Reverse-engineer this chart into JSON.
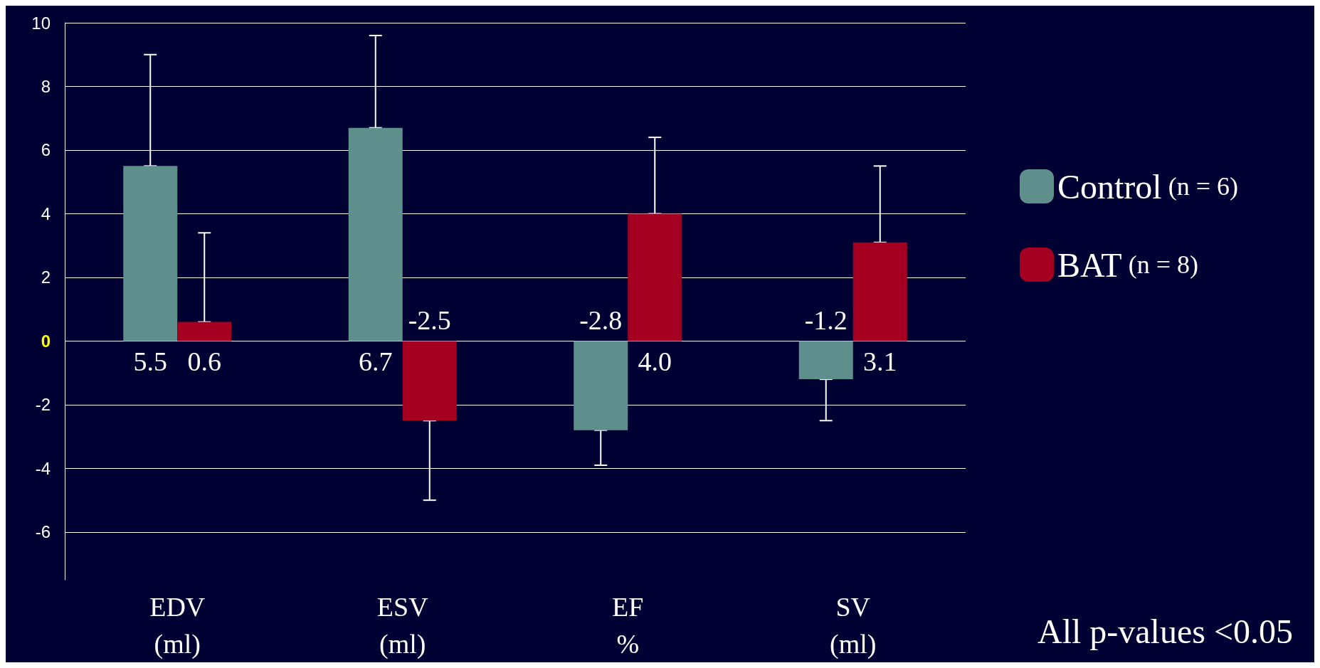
{
  "chart_data": {
    "type": "bar",
    "categories": [
      "EDV\n(ml)",
      "ESV\n(ml)",
      "EF\n%",
      "SV\n(ml)"
    ],
    "series": [
      {
        "name": "Control (n = 6)",
        "color": "#5f8f8c",
        "values": [
          5.5,
          6.7,
          -2.8,
          -1.2
        ],
        "value_labels": [
          "5.5",
          "6.7",
          "-2.8",
          "-1.2"
        ],
        "errors": [
          [
            5.5,
            9.0
          ],
          [
            6.7,
            9.6
          ],
          [
            -3.9,
            -2.8
          ],
          [
            -2.5,
            -1.2
          ]
        ]
      },
      {
        "name": "BAT (n = 8)",
        "color": "#a50021",
        "values": [
          0.6,
          -2.5,
          4.0,
          3.1
        ],
        "value_labels": [
          "0.6",
          "-2.5",
          "4.0",
          "3.1"
        ],
        "errors": [
          [
            0.6,
            3.4
          ],
          [
            -5.0,
            -2.5
          ],
          [
            4.0,
            6.4
          ],
          [
            3.1,
            5.5
          ]
        ]
      }
    ],
    "ylim": [
      -7.5,
      10
    ],
    "yticks": [
      -6,
      -4,
      -2,
      0,
      2,
      4,
      6,
      8,
      10
    ],
    "grid": "y",
    "legend": "right",
    "annotations": [
      "All p-values <0.05"
    ]
  }
}
